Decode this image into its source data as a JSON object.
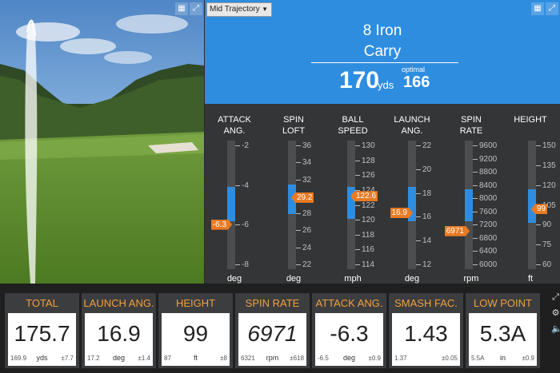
{
  "dropdown": {
    "label": "Mid Trajectory"
  },
  "hero": {
    "club": "8 Iron",
    "metric": "Carry",
    "value": "170",
    "unit": "yds",
    "optimal_label": "optimal",
    "optimal_value": "166"
  },
  "gauges": [
    {
      "title": "ATTACK\nANG.",
      "unit": "deg",
      "ticks": [
        "-2",
        "-4",
        "-6",
        "-8"
      ],
      "value": "-6.3",
      "flag_side": "left",
      "fill": [
        0.36,
        0.63
      ],
      "marker": 0.65
    },
    {
      "title": "SPIN\nLOFT",
      "unit": "deg",
      "ticks": [
        "36",
        "34",
        "32",
        "30",
        "28",
        "26",
        "24",
        "22"
      ],
      "value": "29.2",
      "flag_side": "right",
      "fill": [
        0.34,
        0.57
      ],
      "marker": 0.44
    },
    {
      "title": "BALL\nSPEED",
      "unit": "mph",
      "ticks": [
        "130",
        "128",
        "126",
        "124",
        "122",
        "120",
        "118",
        "116",
        "114"
      ],
      "value": "122.6",
      "flag_side": "right",
      "fill": [
        0.36,
        0.61
      ],
      "marker": 0.43
    },
    {
      "title": "LAUNCH\nANG.",
      "unit": "deg",
      "ticks": [
        "22",
        "20",
        "18",
        "16",
        "14",
        "12"
      ],
      "value": "16.9",
      "flag_side": "left",
      "fill": [
        0.36,
        0.63
      ],
      "marker": 0.56
    },
    {
      "title": "SPIN\nRATE",
      "unit": "rpm",
      "ticks": [
        "9600",
        "9200",
        "8800",
        "8400",
        "8000",
        "7600",
        "7200",
        "6800",
        "6400",
        "6000"
      ],
      "value": "6971",
      "flag_side": "left",
      "fill": [
        0.38,
        0.63
      ],
      "marker": 0.7
    },
    {
      "title": "HEIGHT",
      "unit": "ft",
      "ticks": [
        "150",
        "135",
        "120",
        "105",
        "90",
        "75",
        "60"
      ],
      "value": "99",
      "flag_side": "right",
      "fill": [
        0.38,
        0.64
      ],
      "marker": 0.53
    }
  ],
  "tiles": [
    {
      "label": "TOTAL",
      "value": "175.7",
      "prev": "169.9",
      "unit": "yds",
      "dev": "±7.7"
    },
    {
      "label": "LAUNCH ANG.",
      "value": "16.9",
      "prev": "17.2",
      "unit": "deg",
      "dev": "±1.4"
    },
    {
      "label": "HEIGHT",
      "value": "99",
      "prev": "87",
      "unit": "ft",
      "dev": "±8"
    },
    {
      "label": "SPIN RATE",
      "value": "6971",
      "prev": "6321",
      "unit": "rpm",
      "dev": "±618"
    },
    {
      "label": "ATTACK ANG.",
      "value": "-6.3",
      "prev": "-6.5",
      "unit": "deg",
      "dev": "±0.9"
    },
    {
      "label": "SMASH FAC.",
      "value": "1.43",
      "prev": "1.37",
      "unit": "",
      "dev": "±0.05"
    },
    {
      "label": "LOW POINT",
      "value": "5.3A",
      "prev": "5.5A",
      "unit": "in",
      "dev": "±0.9"
    }
  ],
  "icons": {
    "grid": "grid-icon",
    "expand": "expand-icon",
    "settings": "gear-icon",
    "sound": "speaker-icon"
  },
  "colors": {
    "accent": "#2f8de0",
    "flag": "#e97a22",
    "tile_header": "#f0a040"
  }
}
